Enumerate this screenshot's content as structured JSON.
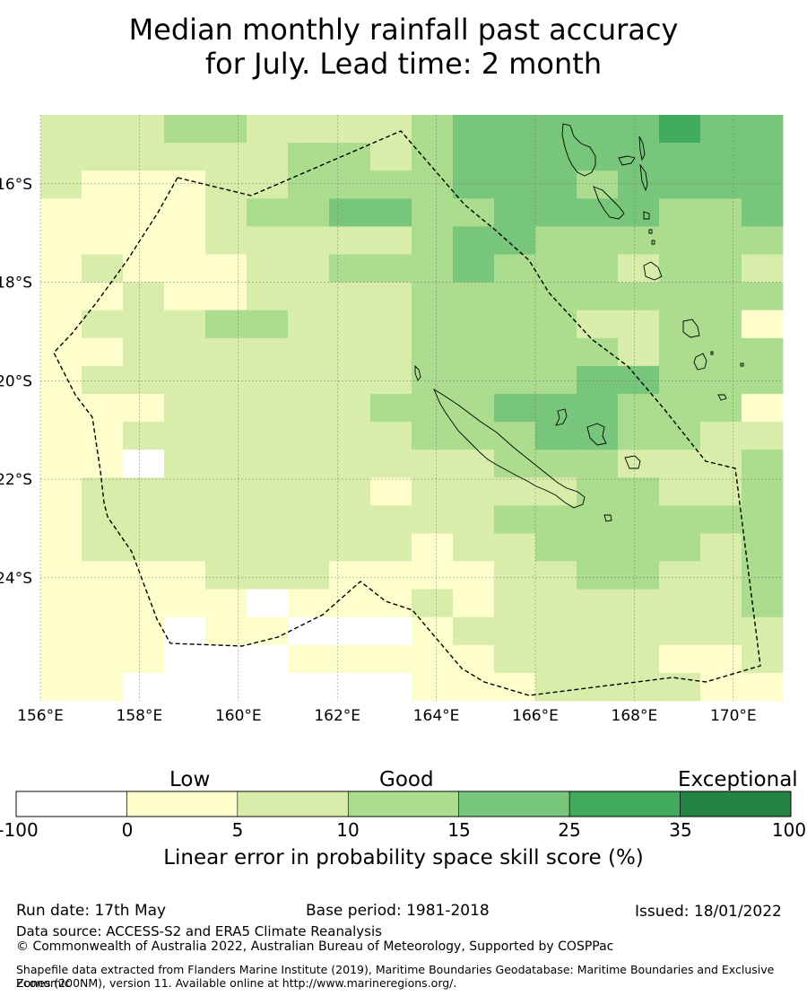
{
  "title": {
    "line1": "Median monthly rainfall past accuracy",
    "line2": "for July. Lead time: 2 month"
  },
  "map": {
    "lon_range": [
      156,
      171
    ],
    "lat_range": [
      -26.5,
      -14.6
    ],
    "x_ticks": [
      "156°E",
      "158°E",
      "160°E",
      "162°E",
      "164°E",
      "166°E",
      "168°E",
      "170°E"
    ],
    "y_ticks": [
      "16°S",
      "18°S",
      "20°S",
      "22°S",
      "24°S"
    ],
    "grid": true,
    "boundary": "dashed EEZ outline",
    "land": "outlined coastlines (New Caledonia, Vanuatu)"
  },
  "colorbar": {
    "categories": [
      "Low",
      "Good",
      "Exceptional"
    ],
    "ticks": [
      "-100",
      "0",
      "5",
      "10",
      "15",
      "25",
      "35",
      "100"
    ],
    "colors": [
      "#ffffff",
      "#fefecc",
      "#d8edaa",
      "#acdc8d",
      "#78c67b",
      "#41ab5d",
      "#238443"
    ],
    "label": "Linear error in probability space skill score (%)"
  },
  "footer": {
    "run_date": "Run date: 17th May",
    "base_period": "Base period: 1981-2018",
    "issued": "Issued: 18/01/2022",
    "data_source": "Data source: ACCESS-S2 and ERA5 Climate Reanalysis",
    "copyright": "© Commonwealth of Australia 2022, Australian Bureau of Meteorology, Supported by COSPPac",
    "shapefile_line1": "Shapefile data extracted from Flanders Marine Institute (2019), Maritime Boundaries Geodatabase: Maritime Boundaries and Exclusive Economic",
    "shapefile_line2": "Zones (200NM), version 11. Available online at http://www.marineregions.org/."
  }
}
